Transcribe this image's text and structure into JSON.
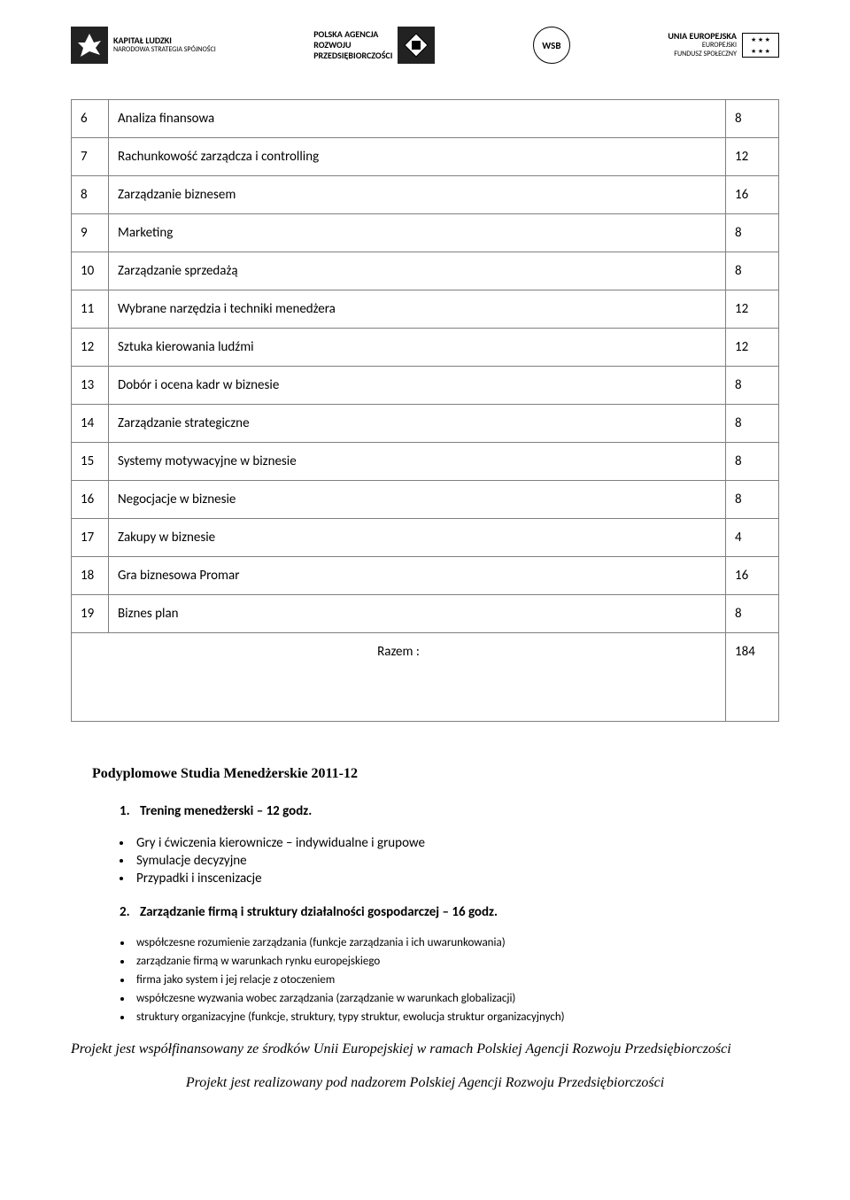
{
  "logos": {
    "kl_title": "KAPITAŁ LUDZKI",
    "kl_sub": "NARODOWA STRATEGIA SPÓJNOŚCI",
    "parp_l1": "POLSKA AGENCJA",
    "parp_l2": "ROZWOJU",
    "parp_l3": "PRZEDSIĘBIORCZOŚCI",
    "wsb": "WSB",
    "eu_l1": "UNIA EUROPEJSKA",
    "eu_l2": "EUROPEJSKI",
    "eu_l3": "FUNDUSZ SPOŁECZNY"
  },
  "table": {
    "rows": [
      {
        "n": "6",
        "name": "Analiza finansowa",
        "v": "8"
      },
      {
        "n": "7",
        "name": "Rachunkowość zarządcza i controlling",
        "v": "12"
      },
      {
        "n": "8",
        "name": "Zarządzanie biznesem",
        "v": "16"
      },
      {
        "n": "9",
        "name": "Marketing",
        "v": "8"
      },
      {
        "n": "10",
        "name": "Zarządzanie sprzedażą",
        "v": "8"
      },
      {
        "n": "11",
        "name": "Wybrane narzędzia i techniki menedżera",
        "v": "12"
      },
      {
        "n": "12",
        "name": "Sztuka kierowania ludźmi",
        "v": "12"
      },
      {
        "n": "13",
        "name": "Dobór i ocena kadr w biznesie",
        "v": "8"
      },
      {
        "n": "14",
        "name": "Zarządzanie strategiczne",
        "v": "8"
      },
      {
        "n": "15",
        "name": "Systemy motywacyjne w biznesie",
        "v": "8"
      },
      {
        "n": "16",
        "name": "Negocjacje w biznesie",
        "v": "8"
      },
      {
        "n": "17",
        "name": "Zakupy w biznesie",
        "v": "4"
      },
      {
        "n": "18",
        "name": "Gra biznesowa Promar",
        "v": "16"
      },
      {
        "n": "19",
        "name": "Biznes plan",
        "v": "8"
      }
    ],
    "razem_label": "Razem :",
    "razem_value": "184"
  },
  "section_title": "Podyplomowe Studia Menedżerskie 2011-12",
  "topic1": "Trening menedżerski – 12 godz.",
  "topic1_items": [
    "Gry i ćwiczenia kierownicze – indywidualne i grupowe",
    "Symulacje decyzyjne",
    "Przypadki i inscenizacje"
  ],
  "topic2": "Zarządzanie firmą i struktury działalności gospodarczej – 16 godz.",
  "topic2_items": [
    "współczesne rozumienie zarządzania (funkcje zarządzania i ich uwarunkowania)",
    "zarządzanie firmą w warunkach rynku europejskiego",
    "firma jako system i jej relacje z otoczeniem",
    "współczesne wyzwania wobec zarządzania (zarządzanie  w warunkach globalizacji)",
    "struktury organizacyjne (funkcje, struktury, typy struktur, ewolucja struktur organizacyjnych)"
  ],
  "footer1": "Projekt jest współfinansowany ze środków Unii Europejskiej w ramach Polskiej Agencji Rozwoju Przedsiębiorczości",
  "footer2": "Projekt jest realizowany pod nadzorem Polskiej Agencji Rozwoju Przedsiębiorczości"
}
